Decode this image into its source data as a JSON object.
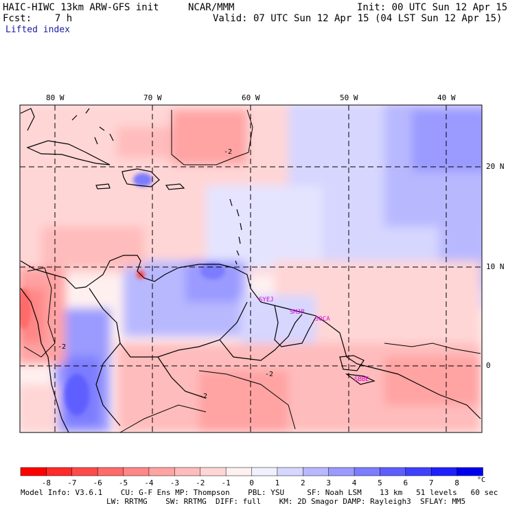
{
  "header": {
    "model_title": "HAIC-HIWC 13km ARW-GFS init",
    "org": "NCAR/MMM",
    "init": "Init: 00 UTC Sun 12 Apr 15",
    "fcst": "Fcst:    7 h",
    "valid": "Valid: 07 UTC Sun 12 Apr 15 (04 LST Sun 12 Apr 15)",
    "field": "Lifted index"
  },
  "axes": {
    "lon_labels": [
      "80 W",
      "70 W",
      "60 W",
      "50 W",
      "40 W"
    ],
    "lat_labels": [
      "20 N",
      "10 N",
      "0"
    ]
  },
  "stations": [
    "SYEJ",
    "SMJP",
    "SOCA",
    "SBBE"
  ],
  "contour_labels": [
    "-2",
    "-2",
    "-2",
    "-2"
  ],
  "colorbar": {
    "labels": [
      "-8",
      "-7",
      "-6",
      "-5",
      "-4",
      "-3",
      "-2",
      "-1",
      "0",
      "1",
      "2",
      "3",
      "4",
      "5",
      "6",
      "7",
      "8"
    ],
    "unit": "°C",
    "colors": [
      "#ff0000",
      "#ff2a2a",
      "#ff4a4a",
      "#ff6a6a",
      "#ff8787",
      "#ffa3a3",
      "#ffbcbc",
      "#ffd6d6",
      "#fff0f0",
      "#f0f0ff",
      "#d6d6ff",
      "#b8b8ff",
      "#9a9aff",
      "#7c7cff",
      "#5e5eff",
      "#4040ff",
      "#2020ff",
      "#0000f0"
    ]
  },
  "footer": {
    "line1": "Model Info: V3.6.1    CU: G-F Ens MP: Thompson    PBL: YSU     SF: Noah LSM    13 km   51 levels   60 sec",
    "line2": "LW: RRTMG    SW: RRTMG  DIFF: full    KM: 2D Smagor DAMP: Rayleigh3  SFLAY: MM5"
  },
  "colors": {
    "station": "#e000e0",
    "title_blue": "#1a1aa0"
  }
}
